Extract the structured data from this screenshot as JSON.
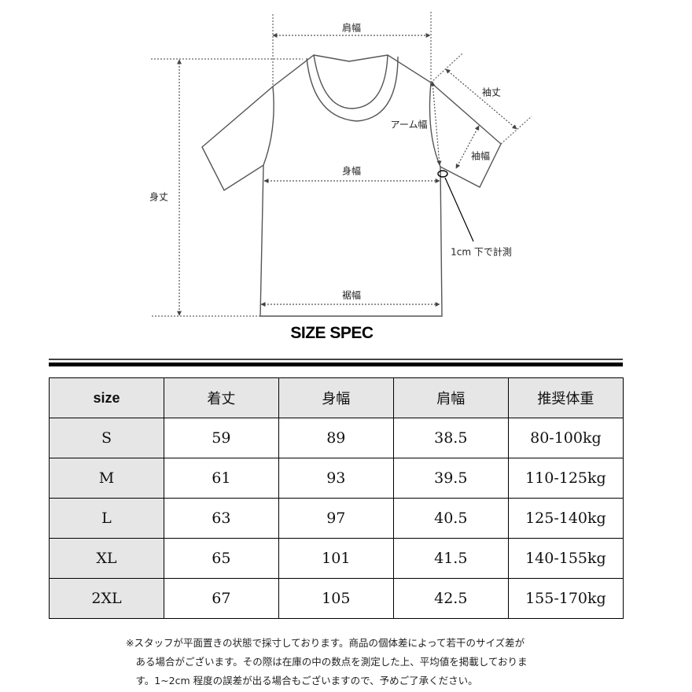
{
  "diagram": {
    "labels": {
      "shoulder": "肩幅",
      "length": "身丈",
      "chest": "身幅",
      "hem": "裾幅",
      "sleeve_length": "袖丈",
      "sleeve_width": "袖幅",
      "arm": "アーム幅",
      "measure_note": "1cm 下で計測"
    }
  },
  "title": "SIZE SPEC",
  "table": {
    "headers": [
      "size",
      "着丈",
      "身幅",
      "肩幅",
      "推奨体重"
    ],
    "rows": [
      [
        "S",
        "59",
        "89",
        "38.5",
        "80-100kg"
      ],
      [
        "M",
        "61",
        "93",
        "39.5",
        "110-125kg"
      ],
      [
        "L",
        "63",
        "97",
        "40.5",
        "125-140kg"
      ],
      [
        "XL",
        "65",
        "101",
        "41.5",
        "140-155kg"
      ],
      [
        "2XL",
        "67",
        "105",
        "42.5",
        "155-170kg"
      ]
    ]
  },
  "note": [
    "※スタッフが平面置きの状態で採寸しております。商品の個体差によって若干のサイズ差が",
    "　ある場合がございます。その際は在庫の中の数点を測定した上、平均値を掲載しておりま",
    "　す。1~2cm 程度の誤差が出る場合もございますので、予めご了承ください。"
  ],
  "colors": {
    "line": "#555555",
    "arrow": "#444444",
    "header_bg": "#e6e6e6"
  }
}
